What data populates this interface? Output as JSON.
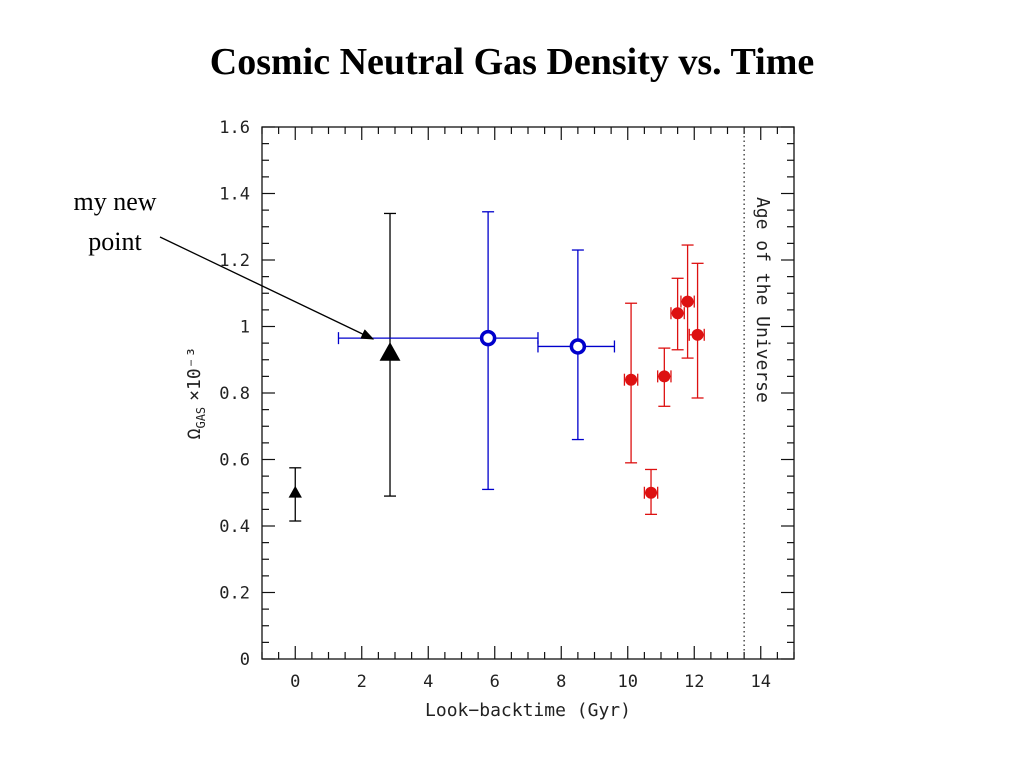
{
  "slide": {
    "title": "Cosmic Neutral Gas Density vs. Time",
    "annotation_line1": "my new",
    "annotation_line2": "point"
  },
  "chart_data": {
    "type": "scatter",
    "title": "Cosmic Neutral Gas Density vs. Time",
    "xlabel": "Look−backtime (Gyr)",
    "ylabel_symbol": "Ω",
    "ylabel_subscript": "GAS",
    "ylabel_factor": "×10⁻³",
    "xlim": [
      -1,
      15
    ],
    "ylim": [
      0,
      1.6
    ],
    "xticks": [
      0,
      2,
      4,
      6,
      8,
      10,
      12,
      14
    ],
    "yticks": [
      0,
      0.2,
      0.4,
      0.6,
      0.8,
      1,
      1.2,
      1.4,
      1.6
    ],
    "xticklabels": [
      "0",
      "2",
      "4",
      "6",
      "8",
      "10",
      "12",
      "14"
    ],
    "yticklabels": [
      "0",
      "0.2",
      "0.4",
      "0.6",
      "0.8",
      "1",
      "1.2",
      "1.4",
      "1.6"
    ],
    "vline": {
      "x": 13.5,
      "label": "Age of the Universe",
      "style": "dotted"
    },
    "annotation": {
      "text": "my new point",
      "x": 2.4,
      "y": 0.97
    },
    "series": [
      {
        "marker": "triangle-filled",
        "size": "small",
        "color": "#000000",
        "points": [
          {
            "x": 0,
            "y": 0.5,
            "ylo": 0.415,
            "yhi": 0.575
          }
        ]
      },
      {
        "marker": "triangle-filled",
        "size": "large",
        "color": "#000000",
        "points": [
          {
            "x": 2.85,
            "y": 0.92,
            "ylo": 0.49,
            "yhi": 1.34
          }
        ]
      },
      {
        "marker": "circle-open",
        "color": "#0000cc",
        "points": [
          {
            "x": 5.8,
            "y": 0.965,
            "xlo": 1.3,
            "xhi": 7.3,
            "ylo": 0.51,
            "yhi": 1.345
          },
          {
            "x": 8.5,
            "y": 0.94,
            "xlo": 7.3,
            "xhi": 9.6,
            "ylo": 0.66,
            "yhi": 1.23
          }
        ]
      },
      {
        "marker": "circle-filled",
        "color": "#dd1111",
        "points": [
          {
            "x": 10.1,
            "y": 0.84,
            "xlo": 9.9,
            "xhi": 10.3,
            "ylo": 0.59,
            "yhi": 1.07
          },
          {
            "x": 10.7,
            "y": 0.5,
            "xlo": 10.5,
            "xhi": 10.9,
            "ylo": 0.435,
            "yhi": 0.57
          },
          {
            "x": 11.1,
            "y": 0.85,
            "xlo": 10.9,
            "xhi": 11.3,
            "ylo": 0.76,
            "yhi": 0.935
          },
          {
            "x": 11.5,
            "y": 1.04,
            "xlo": 11.3,
            "xhi": 11.7,
            "ylo": 0.93,
            "yhi": 1.145
          },
          {
            "x": 11.8,
            "y": 1.075,
            "xlo": 11.6,
            "xhi": 12.0,
            "ylo": 0.905,
            "yhi": 1.245
          },
          {
            "x": 12.1,
            "y": 0.975,
            "xlo": 11.85,
            "xhi": 12.3,
            "ylo": 0.785,
            "yhi": 1.19
          }
        ]
      }
    ]
  }
}
